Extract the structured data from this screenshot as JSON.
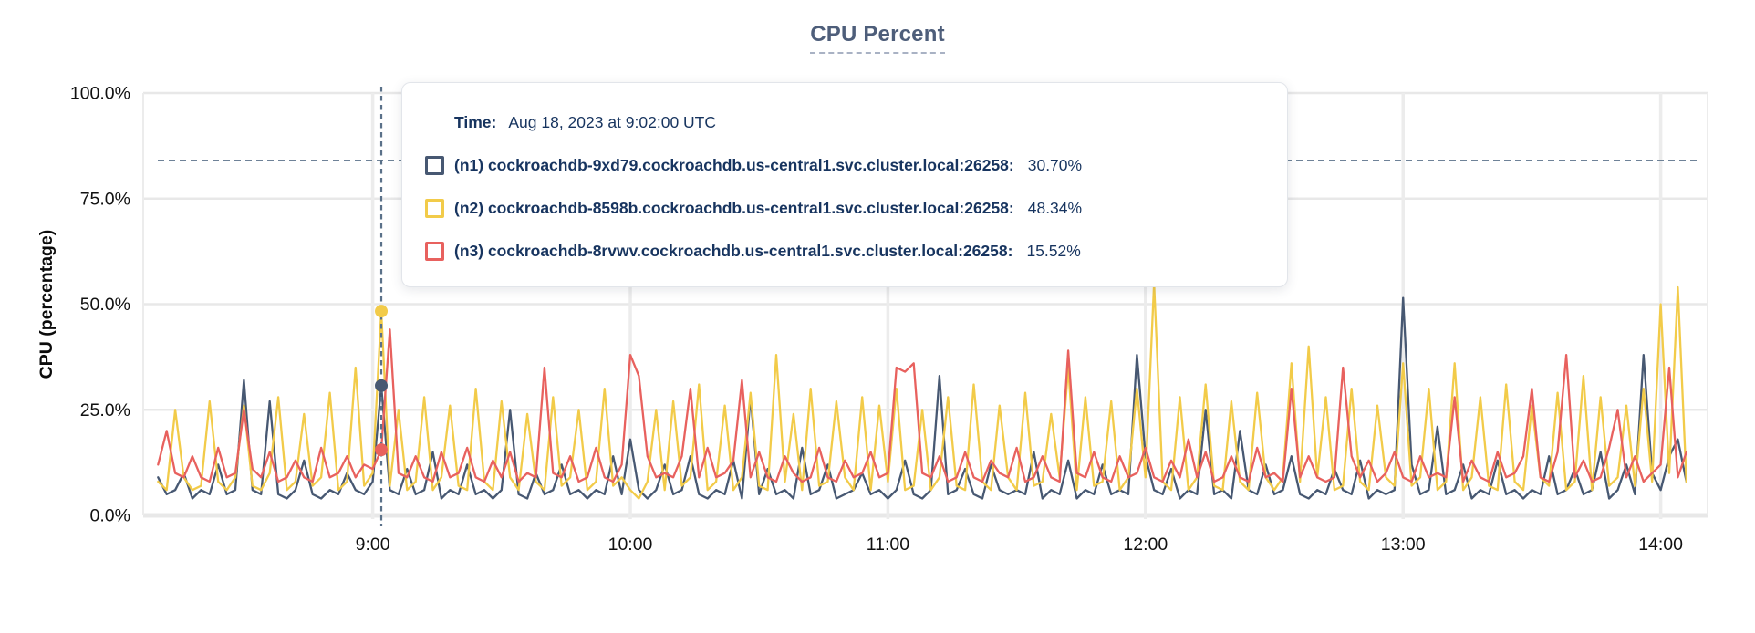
{
  "page_title": "CPU Percent",
  "tooltip": {
    "time_label": "Time:",
    "time_value": "Aug 18, 2023 at 9:02:00 UTC",
    "rows": [
      {
        "series": "n1",
        "name": "(n1) cockroachdb-9xd79.cockroachdb.us-central1.svc.cluster.local:26258:",
        "value": "30.70%",
        "color": "#475872"
      },
      {
        "series": "n2",
        "name": "(n2) cockroachdb-8598b.cockroachdb.us-central1.svc.cluster.local:26258:",
        "value": "48.34%",
        "color": "#f2cb49"
      },
      {
        "series": "n3",
        "name": "(n3) cockroachdb-8rvwv.cockroachdb.us-central1.svc.cluster.local:26258:",
        "value": "15.52%",
        "color": "#e8615e"
      }
    ]
  },
  "colors": {
    "title": "#4e5e7a",
    "axis_text": "#111111",
    "grid": "#e8e8e8",
    "grid_vertical": "#ececec",
    "dashed_guides": "#5a7189",
    "tooltip_text": "#17345f",
    "series_n1": "#475872",
    "series_n2": "#f2cb49",
    "series_n3": "#e8615e"
  },
  "chart_data": {
    "type": "line",
    "title": "CPU Percent",
    "xlabel": "",
    "ylabel": "CPU (percentage)",
    "ylim": [
      0,
      100
    ],
    "grid": true,
    "legend_position": "hover-tooltip",
    "y_ticks": [
      {
        "value": 0,
        "label": "0.0%"
      },
      {
        "value": 25,
        "label": "25.0%"
      },
      {
        "value": 50,
        "label": "50.0%"
      },
      {
        "value": 75,
        "label": "75.0%"
      },
      {
        "value": 100,
        "label": "100.0%"
      }
    ],
    "x_ticks": [
      {
        "hour": 9,
        "label": "9:00"
      },
      {
        "hour": 10,
        "label": "10:00"
      },
      {
        "hour": 11,
        "label": "11:00"
      },
      {
        "hour": 12,
        "label": "12:00"
      },
      {
        "hour": 13,
        "label": "13:00"
      },
      {
        "hour": 14,
        "label": "14:00"
      }
    ],
    "x_axis_range_hours": [
      8.109,
      14.182
    ],
    "x_start_hour": 8.166667,
    "x_step_minutes": 2,
    "threshold_percent": 84,
    "hover_marker": {
      "time_hour": 9.033333,
      "time_index": 26
    },
    "series": [
      {
        "id": "n1",
        "name": "(n1) cockroachdb-9xd79.cockroachdb.us-central1.svc.cluster.local:26258",
        "color": "#475872",
        "hover_value": 30.7,
        "values": [
          9,
          5,
          6,
          10,
          4,
          6,
          5,
          12,
          5,
          6,
          32,
          6,
          5,
          27,
          5,
          4,
          6,
          13,
          5,
          4,
          6,
          5,
          10,
          6,
          5,
          8,
          30.7,
          6,
          5,
          11,
          5,
          6,
          15,
          4,
          6,
          5,
          12,
          5,
          6,
          4,
          6,
          25,
          5,
          4,
          10,
          5,
          6,
          12,
          5,
          6,
          4,
          6,
          5,
          14,
          5,
          18,
          6,
          4,
          6,
          12,
          5,
          6,
          14,
          5,
          4,
          6,
          5,
          13,
          4,
          28,
          5,
          11,
          5,
          6,
          4,
          16,
          5,
          6,
          12,
          4,
          5,
          6,
          10,
          5,
          6,
          4,
          6,
          13,
          5,
          4,
          6,
          33,
          5,
          6,
          11,
          5,
          4,
          12,
          6,
          5,
          6,
          5,
          15,
          4,
          6,
          5,
          13,
          4,
          6,
          5,
          12,
          5,
          6,
          5,
          38,
          14,
          6,
          5,
          11,
          4,
          6,
          5,
          25,
          5,
          6,
          4,
          20,
          6,
          5,
          12,
          5,
          6,
          14,
          5,
          4,
          6,
          5,
          11,
          6,
          5,
          13,
          4,
          6,
          5,
          6,
          51.5,
          12,
          5,
          6,
          21,
          5,
          6,
          12,
          4,
          6,
          5,
          13,
          5,
          6,
          4,
          6,
          5,
          14,
          5,
          6,
          11,
          5,
          6,
          15,
          4,
          6,
          12,
          5,
          38,
          10,
          6,
          14,
          18,
          8
        ]
      },
      {
        "id": "n2",
        "name": "(n2) cockroachdb-8598b.cockroachdb.us-central1.svc.cluster.local:26258",
        "color": "#f2cb49",
        "hover_value": 48.34,
        "values": [
          8,
          6,
          25,
          9,
          6,
          7,
          27,
          8,
          6,
          9,
          26,
          7,
          6,
          10,
          28,
          6,
          8,
          24,
          7,
          9,
          29,
          6,
          8,
          35,
          7,
          10,
          48.34,
          7,
          25,
          6,
          8,
          28,
          6,
          9,
          26,
          7,
          6,
          30,
          8,
          6,
          27,
          9,
          6,
          24,
          8,
          6,
          28,
          7,
          9,
          25,
          6,
          8,
          30,
          7,
          9,
          6,
          4,
          8,
          25,
          6,
          27,
          7,
          9,
          31,
          6,
          8,
          26,
          6,
          9,
          29,
          7,
          6,
          38,
          8,
          24,
          6,
          30,
          7,
          8,
          27,
          9,
          6,
          28,
          6,
          26,
          8,
          30,
          6,
          7,
          25,
          6,
          9,
          28,
          7,
          6,
          31,
          8,
          6,
          26,
          9,
          6,
          29,
          7,
          8,
          24,
          9,
          35,
          6,
          28,
          7,
          8,
          27,
          6,
          9,
          30,
          9,
          55,
          8,
          6,
          28,
          6,
          9,
          31,
          7,
          6,
          27,
          8,
          6,
          29,
          9,
          6,
          9,
          36,
          8,
          40,
          9,
          28,
          6,
          7,
          30,
          8,
          6,
          26,
          9,
          7,
          36,
          7,
          9,
          30,
          6,
          8,
          36,
          6,
          9,
          28,
          7,
          6,
          31,
          8,
          6,
          26,
          9,
          7,
          29,
          6,
          8,
          33,
          6,
          28,
          7,
          9,
          26,
          7,
          30,
          8,
          50,
          10,
          54,
          8
        ]
      },
      {
        "id": "n3",
        "name": "(n3) cockroachdb-8rvwv.cockroachdb.us-central1.svc.cluster.local:26258",
        "color": "#e8615e",
        "hover_value": 15.52,
        "values": [
          12,
          20,
          10,
          9,
          14,
          9,
          8,
          16,
          9,
          10,
          25,
          11,
          9,
          15,
          8,
          9,
          13,
          9,
          8,
          16,
          9,
          10,
          14,
          9,
          12,
          11,
          15.52,
          44,
          10,
          9,
          14,
          9,
          8,
          15,
          9,
          10,
          16,
          9,
          8,
          13,
          9,
          15,
          8,
          10,
          9,
          35,
          10,
          9,
          14,
          8,
          9,
          16,
          9,
          8,
          12,
          38,
          33,
          14,
          9,
          10,
          9,
          14,
          30,
          9,
          16,
          9,
          10,
          13,
          32,
          9,
          15,
          9,
          8,
          14,
          10,
          8,
          9,
          16,
          9,
          8,
          13,
          9,
          10,
          15,
          9,
          10,
          35,
          34,
          36,
          10,
          9,
          14,
          8,
          9,
          15,
          9,
          8,
          13,
          10,
          9,
          16,
          8,
          9,
          14,
          9,
          8,
          39,
          10,
          9,
          15,
          9,
          8,
          14,
          9,
          10,
          16,
          9,
          8,
          13,
          9,
          18,
          9,
          15,
          8,
          9,
          14,
          9,
          8,
          16,
          9,
          10,
          8,
          30,
          9,
          14,
          9,
          8,
          9,
          35,
          14,
          9,
          13,
          8,
          10,
          15,
          9,
          8,
          14,
          9,
          10,
          9,
          28,
          8,
          13,
          9,
          8,
          15,
          9,
          10,
          14,
          30,
          9,
          8,
          15,
          38,
          9,
          13,
          8,
          9,
          16,
          25,
          9,
          14,
          8,
          10,
          12,
          35,
          9,
          15
        ]
      }
    ]
  }
}
